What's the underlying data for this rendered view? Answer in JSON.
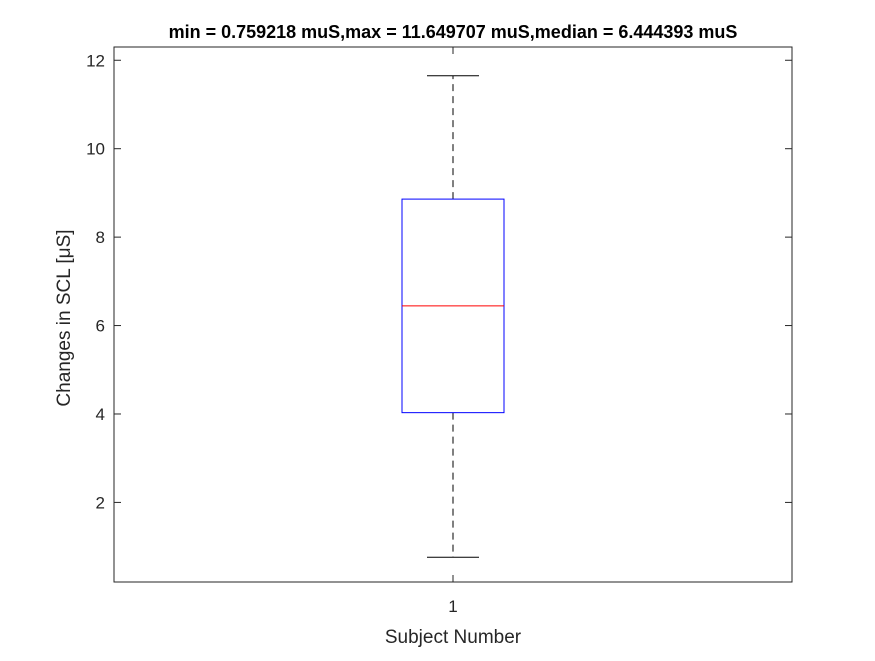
{
  "chart_data": {
    "type": "boxplot",
    "title": "min = 0.759218 muS,max = 11.649707 muS,median = 6.444393 muS",
    "xlabel": "Subject Number",
    "ylabel": "Changes in SCL [μS]",
    "categories": [
      "1"
    ],
    "ylim": [
      0.2,
      12.3
    ],
    "yticks": [
      2,
      4,
      6,
      8,
      10,
      12
    ],
    "grid": false,
    "boxes": [
      {
        "category": "1",
        "min": 0.759218,
        "q1": 4.03,
        "median": 6.444393,
        "q3": 8.86,
        "max": 11.649707
      }
    ],
    "colors": {
      "box": "#0000ff",
      "median": "#ff0000",
      "whisker": "#000000",
      "axes": "#262626"
    }
  }
}
